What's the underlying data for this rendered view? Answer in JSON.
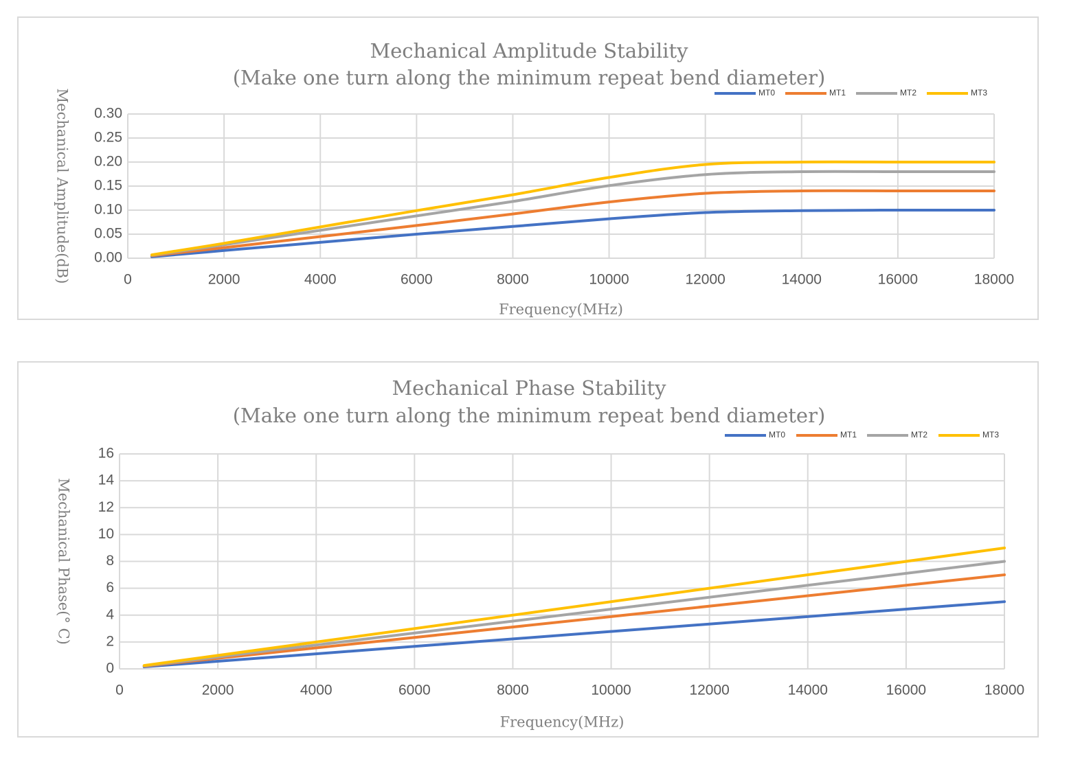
{
  "chart_data": [
    {
      "type": "line",
      "title": [
        "Mechanical Amplitude Stability",
        "(Make one turn along the minimum repeat bend diameter)"
      ],
      "xlabel": "Frequency(MHz)",
      "ylabel": "Mechanical Amplitude(dB)",
      "xlim": [
        0,
        18000
      ],
      "ylim": [
        0,
        0.3
      ],
      "x_ticks": [
        "0",
        "2000",
        "4000",
        "6000",
        "8000",
        "10000",
        "12000",
        "14000",
        "16000",
        "18000"
      ],
      "y_ticks": [
        "0.00",
        "0.05",
        "0.10",
        "0.15",
        "0.20",
        "0.25",
        "0.30"
      ],
      "legend_position": "top-right",
      "x": [
        500,
        2000,
        4000,
        6000,
        8000,
        10000,
        12000,
        14000,
        16000,
        18000
      ],
      "series": [
        {
          "name": "MT0",
          "color": "#4472c4",
          "values": [
            0.003,
            0.016,
            0.033,
            0.05,
            0.066,
            0.082,
            0.095,
            0.099,
            0.1,
            0.1
          ]
        },
        {
          "name": "MT1",
          "color": "#ed7d31",
          "values": [
            0.005,
            0.022,
            0.045,
            0.068,
            0.092,
            0.117,
            0.135,
            0.14,
            0.14,
            0.14
          ]
        },
        {
          "name": "MT2",
          "color": "#a5a5a5",
          "values": [
            0.006,
            0.028,
            0.058,
            0.088,
            0.118,
            0.151,
            0.174,
            0.18,
            0.18,
            0.18
          ]
        },
        {
          "name": "MT3",
          "color": "#ffc000",
          "values": [
            0.007,
            0.031,
            0.065,
            0.099,
            0.132,
            0.168,
            0.195,
            0.2,
            0.2,
            0.2
          ]
        }
      ]
    },
    {
      "type": "line",
      "title": [
        "Mechanical Phase Stability",
        "(Make one turn along the minimum repeat bend diameter)"
      ],
      "xlabel": "Frequency(MHz)",
      "ylabel": "Mechanical Phase(° C)",
      "xlim": [
        0,
        18000
      ],
      "ylim": [
        0,
        16
      ],
      "x_ticks": [
        "0",
        "2000",
        "4000",
        "6000",
        "8000",
        "10000",
        "12000",
        "14000",
        "16000",
        "18000"
      ],
      "y_ticks": [
        "0",
        "2",
        "4",
        "6",
        "8",
        "10",
        "12",
        "14",
        "16"
      ],
      "legend_position": "top-right",
      "x": [
        500,
        18000
      ],
      "series": [
        {
          "name": "MT0",
          "color": "#4472c4",
          "values": [
            0.15,
            5.0
          ]
        },
        {
          "name": "MT1",
          "color": "#ed7d31",
          "values": [
            0.2,
            7.0
          ]
        },
        {
          "name": "MT2",
          "color": "#a5a5a5",
          "values": [
            0.22,
            8.0
          ]
        },
        {
          "name": "MT3",
          "color": "#ffc000",
          "values": [
            0.25,
            9.0
          ]
        }
      ]
    }
  ]
}
